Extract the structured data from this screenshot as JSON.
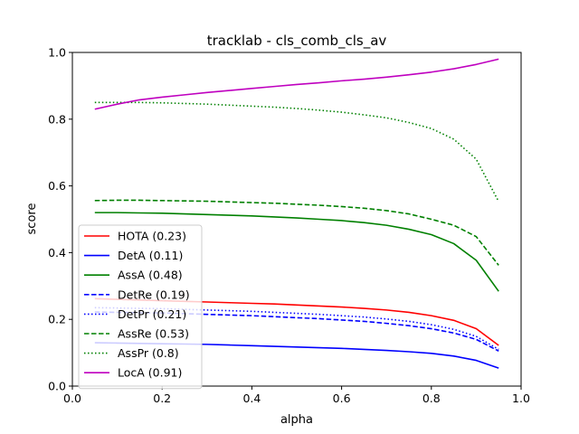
{
  "chart_data": {
    "type": "line",
    "title": "tracklab - cls_comb_cls_av",
    "xlabel": "alpha",
    "ylabel": "score",
    "xlim": [
      0.0,
      1.0
    ],
    "ylim": [
      0.0,
      1.0
    ],
    "xticks": [
      "0.0",
      "0.2",
      "0.4",
      "0.6",
      "0.8",
      "1.0"
    ],
    "yticks": [
      "0.0",
      "0.2",
      "0.4",
      "0.6",
      "0.8",
      "1.0"
    ],
    "grid": false,
    "legend_position": "center-left",
    "x": [
      0.05,
      0.1,
      0.15,
      0.2,
      0.25,
      0.3,
      0.35,
      0.4,
      0.45,
      0.5,
      0.55,
      0.6,
      0.65,
      0.7,
      0.75,
      0.8,
      0.85,
      0.9,
      0.95
    ],
    "series": [
      {
        "name": "HOTA (0.23)",
        "color": "#ff0000",
        "dash": "solid",
        "values": [
          0.262,
          0.26,
          0.258,
          0.256,
          0.254,
          0.252,
          0.25,
          0.248,
          0.246,
          0.243,
          0.24,
          0.237,
          0.233,
          0.228,
          0.221,
          0.211,
          0.197,
          0.172,
          0.122
        ]
      },
      {
        "name": "DetA (0.11)",
        "color": "#0000ff",
        "dash": "solid",
        "values": [
          0.13,
          0.129,
          0.128,
          0.127,
          0.126,
          0.125,
          0.123,
          0.121,
          0.119,
          0.117,
          0.115,
          0.113,
          0.11,
          0.107,
          0.103,
          0.098,
          0.09,
          0.077,
          0.054
        ]
      },
      {
        "name": "AssA (0.48)",
        "color": "#008000",
        "dash": "solid",
        "values": [
          0.52,
          0.52,
          0.519,
          0.518,
          0.516,
          0.514,
          0.512,
          0.51,
          0.507,
          0.504,
          0.5,
          0.496,
          0.49,
          0.482,
          0.47,
          0.454,
          0.427,
          0.377,
          0.284
        ]
      },
      {
        "name": "DetRe (0.19)",
        "color": "#0000ff",
        "dash": "dashed",
        "values": [
          0.222,
          0.221,
          0.22,
          0.219,
          0.217,
          0.215,
          0.213,
          0.211,
          0.208,
          0.205,
          0.202,
          0.198,
          0.194,
          0.188,
          0.181,
          0.172,
          0.159,
          0.14,
          0.105
        ]
      },
      {
        "name": "DetPr (0.21)",
        "color": "#0000ff",
        "dash": "dotted",
        "values": [
          0.235,
          0.234,
          0.233,
          0.232,
          0.23,
          0.228,
          0.226,
          0.224,
          0.221,
          0.218,
          0.215,
          0.211,
          0.207,
          0.201,
          0.194,
          0.184,
          0.17,
          0.149,
          0.11
        ]
      },
      {
        "name": "AssRe (0.53)",
        "color": "#008000",
        "dash": "dashed",
        "values": [
          0.556,
          0.557,
          0.557,
          0.556,
          0.555,
          0.554,
          0.552,
          0.55,
          0.548,
          0.545,
          0.542,
          0.538,
          0.533,
          0.526,
          0.516,
          0.5,
          0.482,
          0.448,
          0.362
        ]
      },
      {
        "name": "AssPr (0.8)",
        "color": "#008000",
        "dash": "dotted",
        "values": [
          0.85,
          0.85,
          0.85,
          0.849,
          0.847,
          0.845,
          0.842,
          0.839,
          0.836,
          0.832,
          0.827,
          0.821,
          0.813,
          0.804,
          0.79,
          0.772,
          0.74,
          0.68,
          0.553
        ]
      },
      {
        "name": "LocA (0.91)",
        "color": "#bf00bf",
        "dash": "solid",
        "values": [
          0.83,
          0.845,
          0.858,
          0.866,
          0.873,
          0.88,
          0.886,
          0.892,
          0.898,
          0.904,
          0.909,
          0.915,
          0.92,
          0.926,
          0.933,
          0.941,
          0.951,
          0.964,
          0.98
        ]
      }
    ]
  }
}
